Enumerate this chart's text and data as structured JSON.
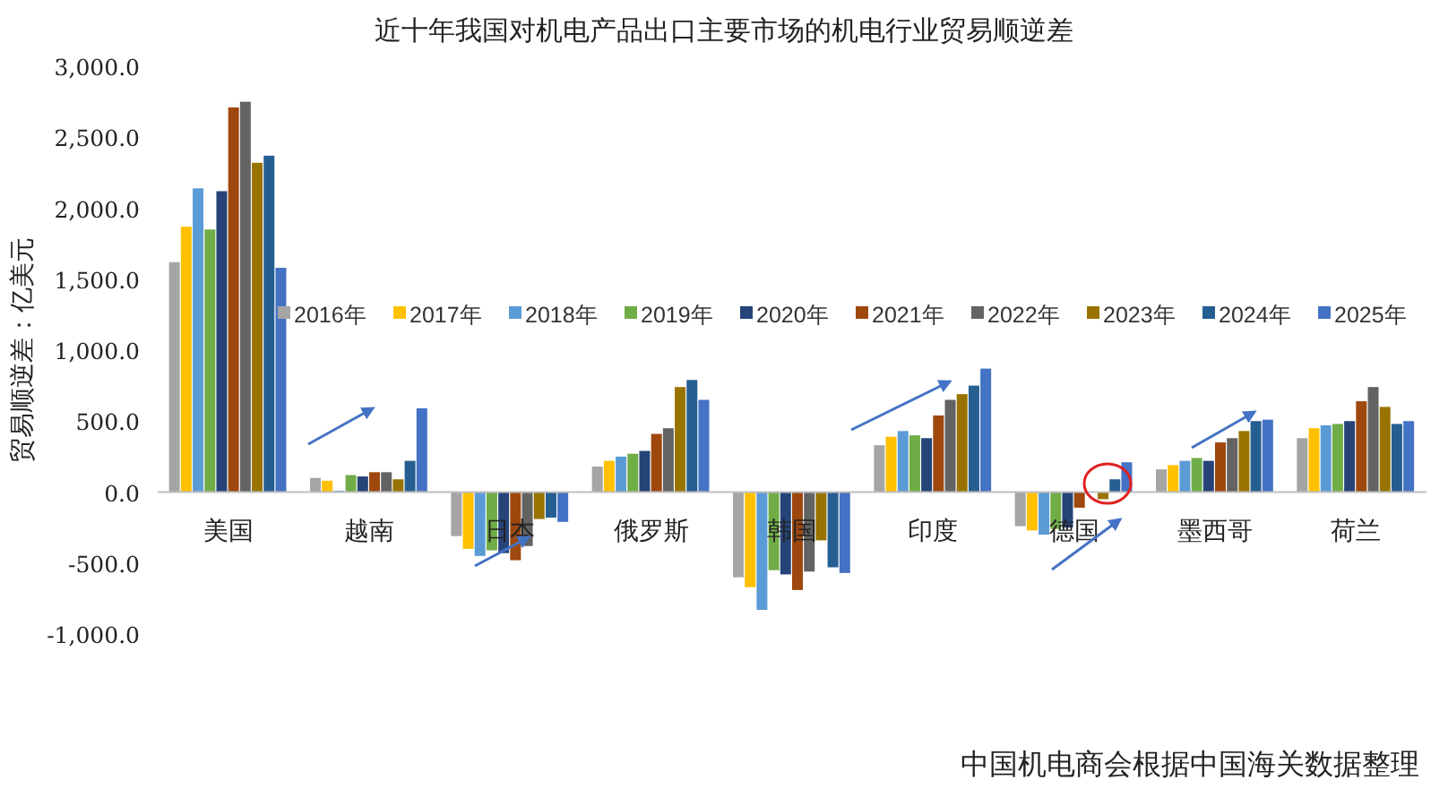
{
  "chart_data": {
    "type": "bar",
    "title": "近十年我国对机电产品出口主要市场的机电行业贸易顺逆差",
    "ylabel": "贸易顺逆差：亿美元",
    "categories": [
      "美国",
      "越南",
      "日本",
      "俄罗斯",
      "韩国",
      "印度",
      "德国",
      "墨西哥",
      "荷兰"
    ],
    "ylim": [
      -1000,
      3000
    ],
    "yticks": [
      {
        "value": -1000,
        "label": "-1,000.0"
      },
      {
        "value": -500,
        "label": "-500.0"
      },
      {
        "value": 0,
        "label": "0.0"
      },
      {
        "value": 500,
        "label": "500.0"
      },
      {
        "value": 1000,
        "label": "1,000.0"
      },
      {
        "value": 1500,
        "label": "1,500.0"
      },
      {
        "value": 2000,
        "label": "2,000.0"
      },
      {
        "value": 2500,
        "label": "2,500.0"
      },
      {
        "value": 3000,
        "label": "3,000.0"
      }
    ],
    "legend": "right",
    "series": [
      {
        "name": "2016年",
        "color": "#a5a5a5",
        "values": [
          1620,
          100,
          -310,
          180,
          -600,
          330,
          -240,
          160,
          380
        ]
      },
      {
        "name": "2017年",
        "color": "#ffc000",
        "values": [
          1870,
          80,
          -400,
          220,
          -670,
          390,
          -270,
          190,
          450
        ]
      },
      {
        "name": "2018年",
        "color": "#5b9bd5",
        "values": [
          2140,
          10,
          -450,
          250,
          -830,
          430,
          -300,
          220,
          470
        ]
      },
      {
        "name": "2019年",
        "color": "#70ad47",
        "values": [
          1850,
          120,
          -410,
          270,
          -550,
          400,
          -260,
          240,
          480
        ]
      },
      {
        "name": "2020年",
        "color": "#264478",
        "values": [
          2120,
          110,
          -430,
          290,
          -580,
          380,
          -250,
          220,
          500
        ]
      },
      {
        "name": "2021年",
        "color": "#9e480e",
        "values": [
          2710,
          140,
          -480,
          410,
          -690,
          540,
          -110,
          350,
          640
        ]
      },
      {
        "name": "2022年",
        "color": "#636363",
        "values": [
          2750,
          140,
          -380,
          450,
          -560,
          650,
          0,
          380,
          740
        ]
      },
      {
        "name": "2023年",
        "color": "#997300",
        "values": [
          2320,
          90,
          -190,
          740,
          -340,
          690,
          -50,
          430,
          600
        ]
      },
      {
        "name": "2024年",
        "color": "#255e91",
        "values": [
          2370,
          220,
          -180,
          790,
          -530,
          750,
          90,
          500,
          480
        ]
      },
      {
        "name": "2025年",
        "color": "#4472c4",
        "values": [
          1580,
          590,
          -210,
          650,
          -570,
          870,
          210,
          510,
          500
        ]
      }
    ],
    "annotations": [
      "中国机电商会根据中国海关数据整理"
    ]
  }
}
